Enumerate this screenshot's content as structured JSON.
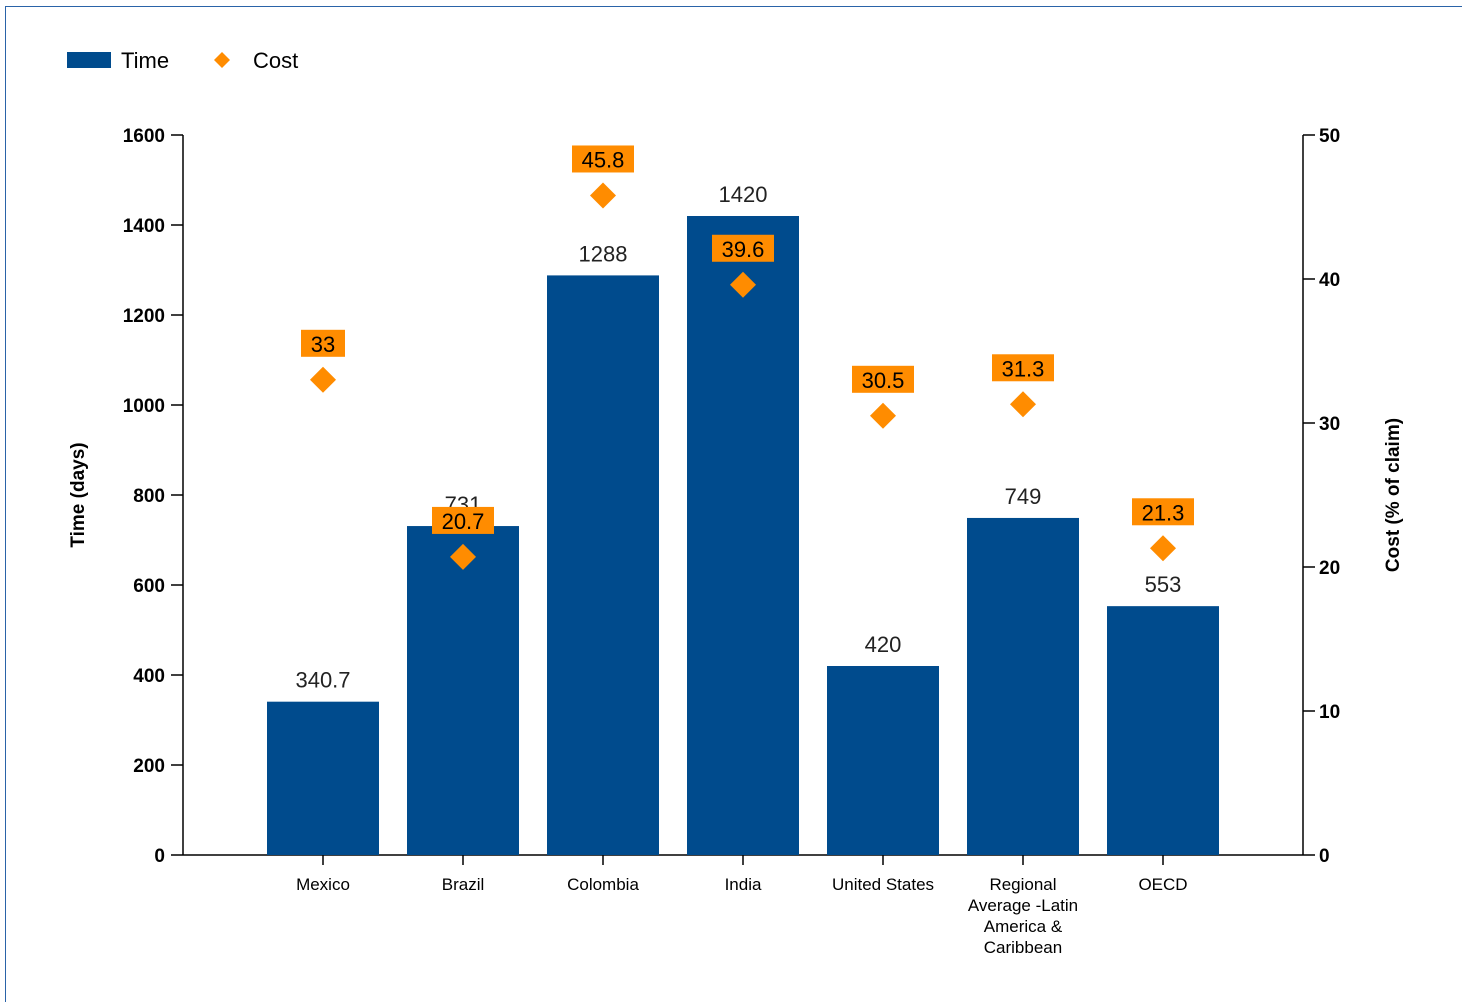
{
  "chart_data": {
    "type": "bar",
    "categories": [
      "Mexico",
      "Brazil",
      "Colombia",
      "India",
      "United States",
      "Regional Average -Latin America & Caribbean",
      "OECD"
    ],
    "category_lines": [
      [
        "Mexico"
      ],
      [
        "Brazil"
      ],
      [
        "Colombia"
      ],
      [
        "India"
      ],
      [
        "United States"
      ],
      [
        "Regional",
        "Average -Latin",
        "America &",
        "Caribbean"
      ],
      [
        "OECD"
      ]
    ],
    "series": [
      {
        "name": "Time",
        "kind": "bar",
        "axis": "left",
        "values": [
          340.7,
          731,
          1288,
          1420,
          420,
          749,
          553
        ],
        "labels": [
          "340.7",
          "731",
          "1288",
          "1420",
          "420",
          "749",
          "553"
        ],
        "color": "#004b8d"
      },
      {
        "name": "Cost",
        "kind": "marker",
        "axis": "right",
        "values": [
          33,
          20.7,
          45.8,
          39.6,
          30.5,
          31.3,
          21.3
        ],
        "labels": [
          "33",
          "20.7",
          "45.8",
          "39.6",
          "30.5",
          "31.3",
          "21.3"
        ],
        "color": "#ff8c00"
      }
    ],
    "ylabel": "Time (days)",
    "y2label": "Cost (% of claim)",
    "ylim": [
      0,
      1600
    ],
    "yticks": [
      0,
      200,
      400,
      600,
      800,
      1000,
      1200,
      1400,
      1600
    ],
    "y2lim": [
      0,
      50
    ],
    "y2ticks": [
      0,
      10,
      20,
      30,
      40,
      50
    ],
    "grid": false,
    "legend_position": "top-left"
  },
  "legend": {
    "items": [
      {
        "label": "Time",
        "symbol": "bar",
        "color": "#004b8d"
      },
      {
        "label": "Cost",
        "symbol": "diamond",
        "color": "#ff8c00"
      }
    ]
  },
  "colors": {
    "frame": "#2a63a8",
    "axis": "#000000",
    "cost_label_bg": "#ff8c00"
  }
}
